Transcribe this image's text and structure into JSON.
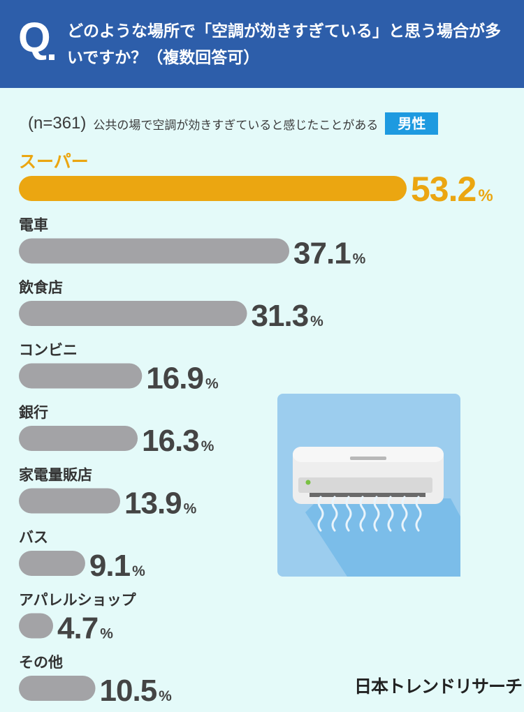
{
  "header": {
    "q_label": "Q",
    "question": "どのような場所で「空調が効きすぎている」と思う場合が多いですか？（複数回答可）"
  },
  "meta": {
    "n": "(n=361)",
    "description": "公共の場で空調が効きすぎていると感じたことがある",
    "badge": "男性"
  },
  "colors": {
    "header_bg": "#2d5eaa",
    "page_bg": "#e4faf9",
    "highlight": "#eba611",
    "bar": "#a3a3a6",
    "value_text": "#444444",
    "badge": "#1e9ae0"
  },
  "icons": {
    "illustration": "air-conditioner-icon"
  },
  "chart_data": {
    "type": "bar",
    "orientation": "horizontal",
    "categories": [
      "スーパー",
      "電車",
      "飲食店",
      "コンビニ",
      "銀行",
      "家電量販店",
      "バス",
      "アパレルショップ",
      "その他"
    ],
    "values": [
      53.2,
      37.1,
      31.3,
      16.9,
      16.3,
      13.9,
      9.1,
      4.7,
      10.5
    ],
    "unit": "%",
    "highlight_index": 0
  },
  "logo": {
    "text": "日本トレンドリサーチ"
  }
}
